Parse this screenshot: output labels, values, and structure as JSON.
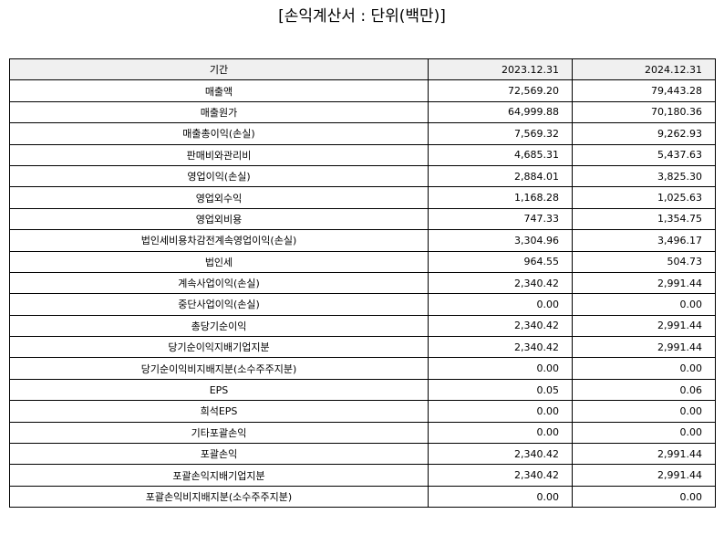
{
  "title": "[손익계산서 : 단위(백만)]",
  "table": {
    "headers": [
      "기간",
      "2023.12.31",
      "2024.12.31"
    ],
    "rows": [
      {
        "label": "매출액",
        "y2023": "72,569.20",
        "y2024": "79,443.28"
      },
      {
        "label": "매출원가",
        "y2023": "64,999.88",
        "y2024": "70,180.36"
      },
      {
        "label": "매출총이익(손실)",
        "y2023": "7,569.32",
        "y2024": "9,262.93"
      },
      {
        "label": "판매비와관리비",
        "y2023": "4,685.31",
        "y2024": "5,437.63"
      },
      {
        "label": "영업이익(손실)",
        "y2023": "2,884.01",
        "y2024": "3,825.30"
      },
      {
        "label": "영업외수익",
        "y2023": "1,168.28",
        "y2024": "1,025.63"
      },
      {
        "label": "영업외비용",
        "y2023": "747.33",
        "y2024": "1,354.75"
      },
      {
        "label": "법인세비용차감전계속영업이익(손실)",
        "y2023": "3,304.96",
        "y2024": "3,496.17"
      },
      {
        "label": "법인세",
        "y2023": "964.55",
        "y2024": "504.73"
      },
      {
        "label": "계속사업이익(손실)",
        "y2023": "2,340.42",
        "y2024": "2,991.44"
      },
      {
        "label": "중단사업이익(손실)",
        "y2023": "0.00",
        "y2024": "0.00"
      },
      {
        "label": "총당기순이익",
        "y2023": "2,340.42",
        "y2024": "2,991.44"
      },
      {
        "label": "당기순이익지배기업지분",
        "y2023": "2,340.42",
        "y2024": "2,991.44"
      },
      {
        "label": "당기순이익비지배지분(소수주주지분)",
        "y2023": "0.00",
        "y2024": "0.00"
      },
      {
        "label": "EPS",
        "y2023": "0.05",
        "y2024": "0.06"
      },
      {
        "label": "희석EPS",
        "y2023": "0.00",
        "y2024": "0.00"
      },
      {
        "label": "기타포괄손익",
        "y2023": "0.00",
        "y2024": "0.00"
      },
      {
        "label": "포괄손익",
        "y2023": "2,340.42",
        "y2024": "2,991.44"
      },
      {
        "label": "포괄손익지배기업지분",
        "y2023": "2,340.42",
        "y2024": "2,991.44"
      },
      {
        "label": "포괄손익비지배지분(소수주주지분)",
        "y2023": "0.00",
        "y2024": "0.00"
      }
    ]
  }
}
